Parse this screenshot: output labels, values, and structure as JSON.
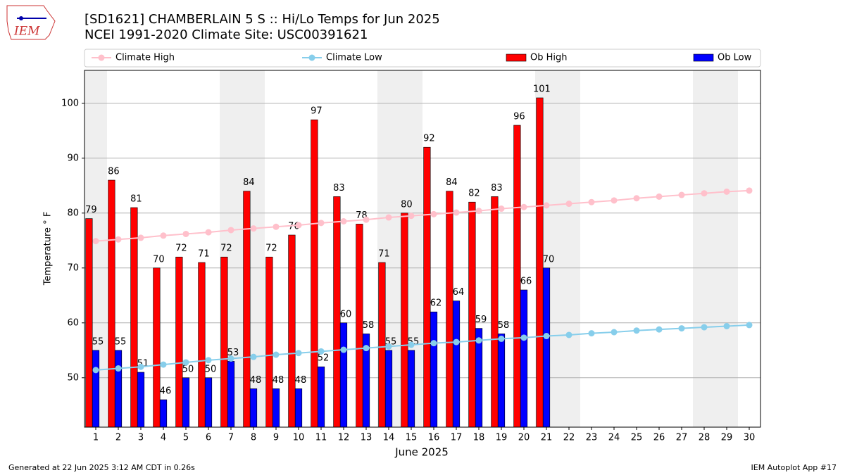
{
  "logo_text": "IEM",
  "footer_left": "Generated at 22 Jun 2025 3:12 AM CDT in 0.26s",
  "footer_right": "IEM Autoplot App #17",
  "chart_data": {
    "type": "bar",
    "title": "[SD1621] CHAMBERLAIN 5 S :: Hi/Lo Temps for Jun 2025",
    "subtitle": "NCEI 1991-2020 Climate Site: USC00391621",
    "ylabel": "Temperature ° F",
    "xlabel": "June 2025",
    "x": [
      1,
      2,
      3,
      4,
      5,
      6,
      7,
      8,
      9,
      10,
      11,
      12,
      13,
      14,
      15,
      16,
      17,
      18,
      19,
      20,
      21,
      22,
      23,
      24,
      25,
      26,
      27,
      28,
      29,
      30
    ],
    "xlim": [
      0.5,
      30.5
    ],
    "xticks": [
      1,
      2,
      3,
      4,
      5,
      6,
      7,
      8,
      9,
      10,
      11,
      12,
      13,
      14,
      15,
      16,
      17,
      18,
      19,
      20,
      21,
      22,
      23,
      24,
      25,
      26,
      27,
      28,
      29,
      30
    ],
    "ylim": [
      41,
      106
    ],
    "yticks": [
      50,
      60,
      70,
      80,
      90,
      100
    ],
    "grid": true,
    "legend": "top",
    "shaded_days": [
      1,
      7,
      8,
      14,
      15,
      21,
      22,
      28,
      29
    ],
    "shade_color": "#efefef",
    "series": [
      {
        "name": "Climate High",
        "type": "line",
        "color": "#ffc0cb",
        "values": [
          74.9,
          75.2,
          75.5,
          75.9,
          76.2,
          76.5,
          76.9,
          77.2,
          77.5,
          77.8,
          78.2,
          78.5,
          78.8,
          79.2,
          79.5,
          79.8,
          80.1,
          80.4,
          80.8,
          81.1,
          81.4,
          81.7,
          82.0,
          82.3,
          82.7,
          83.0,
          83.3,
          83.6,
          83.9,
          84.1
        ]
      },
      {
        "name": "Climate Low",
        "type": "line",
        "color": "#87ceeb",
        "values": [
          51.4,
          51.7,
          52.0,
          52.4,
          52.8,
          53.2,
          53.5,
          53.8,
          54.2,
          54.5,
          54.8,
          55.1,
          55.4,
          55.7,
          56.0,
          56.3,
          56.5,
          56.8,
          57.1,
          57.3,
          57.6,
          57.8,
          58.1,
          58.3,
          58.6,
          58.8,
          59.0,
          59.2,
          59.4,
          59.6
        ]
      },
      {
        "name": "Ob High",
        "type": "bar",
        "color": "#ff0000",
        "values": [
          79,
          86,
          81,
          70,
          72,
          71,
          72,
          84,
          72,
          76,
          97,
          83,
          78,
          71,
          80,
          92,
          84,
          82,
          83,
          96,
          101,
          null,
          null,
          null,
          null,
          null,
          null,
          null,
          null,
          null
        ]
      },
      {
        "name": "Ob Low",
        "type": "bar",
        "color": "#0000ff",
        "values": [
          55,
          55,
          51,
          46,
          50,
          50,
          53,
          48,
          48,
          48,
          52,
          60,
          58,
          55,
          55,
          62,
          64,
          59,
          58,
          66,
          70,
          null,
          null,
          null,
          null,
          null,
          null,
          null,
          null,
          null
        ]
      }
    ]
  }
}
